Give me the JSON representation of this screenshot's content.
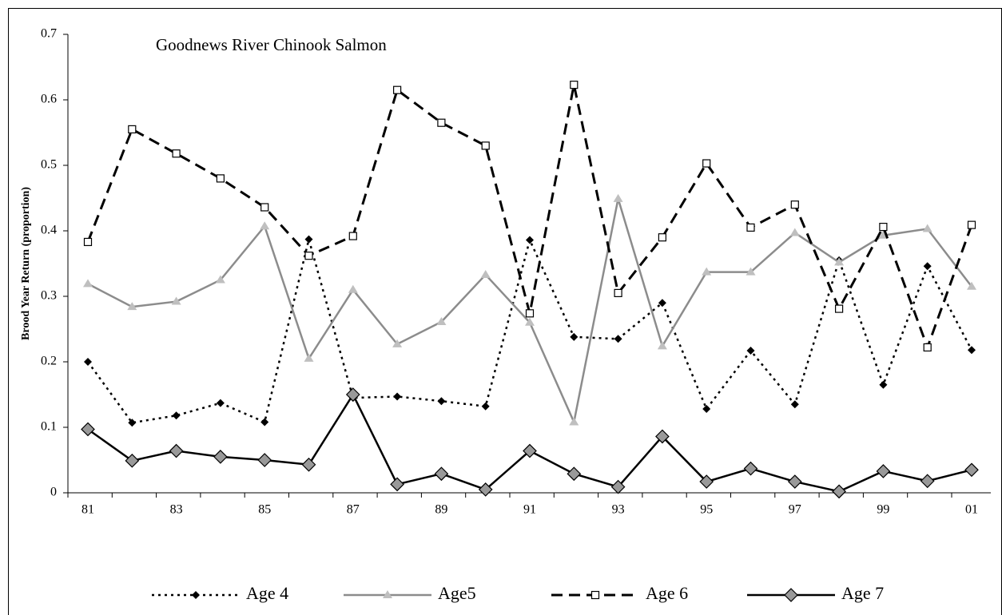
{
  "chart_data": {
    "type": "line",
    "title": "Goodnews River Chinook Salmon",
    "y_label": "Brood Year Return (proportion)",
    "categories": [
      "81",
      null,
      "83",
      null,
      "85",
      null,
      "87",
      null,
      "89",
      null,
      "91",
      null,
      "93",
      null,
      "95",
      null,
      "97",
      null,
      "99",
      null,
      "01"
    ],
    "ylim": [
      0,
      0.7
    ],
    "yticks": [
      0,
      0.1,
      0.2,
      0.3,
      0.4,
      0.5,
      0.6,
      0.7
    ],
    "legend": "bottom",
    "series": [
      {
        "name": "Age 4",
        "color": "#000000",
        "line_style": "dotted",
        "marker": "diamond",
        "values": [
          0.2,
          0.107,
          0.118,
          0.137,
          0.108,
          0.387,
          0.145,
          0.147,
          0.14,
          0.132,
          0.386,
          0.238,
          0.235,
          0.29,
          0.128,
          0.217,
          0.135,
          0.355,
          0.165,
          0.346,
          0.218
        ]
      },
      {
        "name": "Age5",
        "color": "#8c8c8c",
        "line_style": "solid",
        "marker": "triangle",
        "values": [
          0.319,
          0.284,
          0.292,
          0.325,
          0.407,
          0.205,
          0.31,
          0.227,
          0.261,
          0.333,
          0.26,
          0.108,
          0.449,
          0.224,
          0.337,
          0.337,
          0.397,
          0.352,
          0.393,
          0.403,
          0.315
        ]
      },
      {
        "name": "Age 6",
        "color": "#000000",
        "line_style": "dashed",
        "marker": "square",
        "values": [
          0.383,
          0.555,
          0.518,
          0.48,
          0.436,
          0.362,
          0.392,
          0.615,
          0.565,
          0.53,
          0.274,
          0.623,
          0.305,
          0.39,
          0.503,
          0.405,
          0.44,
          0.281,
          0.406,
          0.222,
          0.409
        ]
      },
      {
        "name": "Age 7",
        "color": "#000000",
        "line_style": "solid",
        "marker": "big-diamond",
        "values": [
          0.097,
          0.049,
          0.064,
          0.055,
          0.05,
          0.043,
          0.15,
          0.013,
          0.029,
          0.005,
          0.064,
          0.029,
          0.009,
          0.086,
          0.017,
          0.037,
          0.017,
          0.002,
          0.033,
          0.018,
          0.035
        ]
      }
    ]
  }
}
